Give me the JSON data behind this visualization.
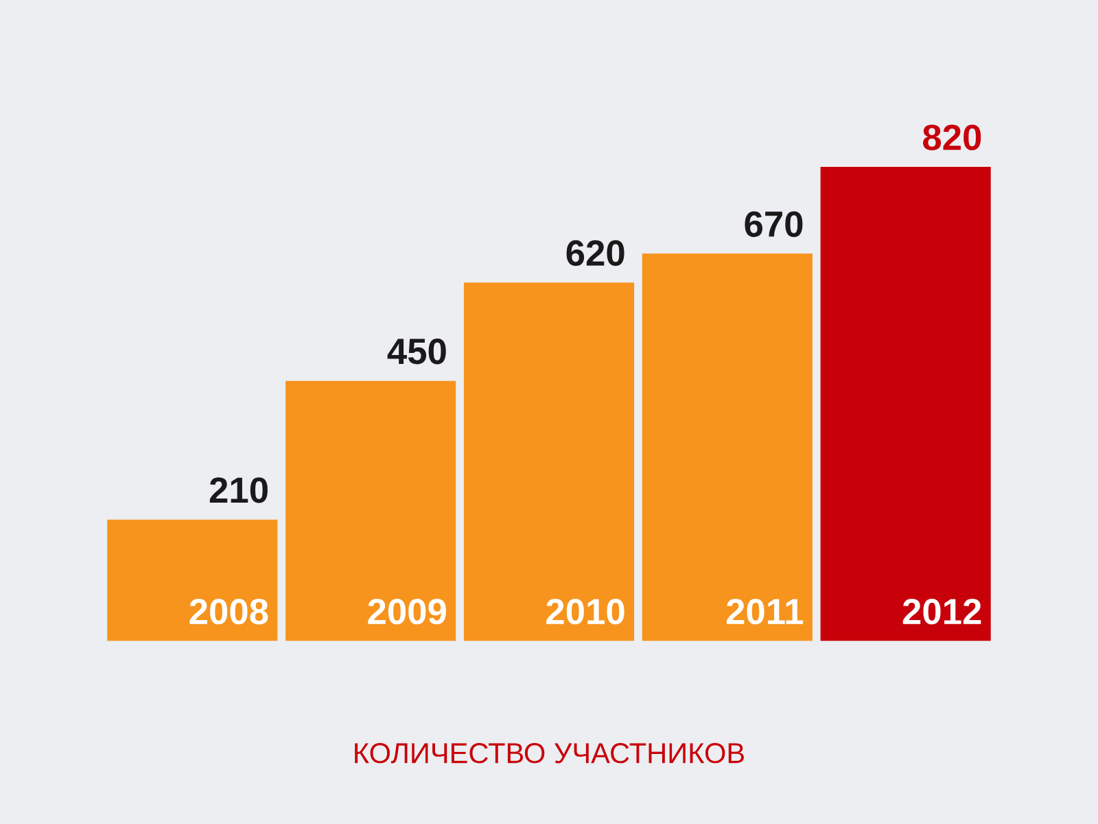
{
  "chart_data": {
    "type": "bar",
    "categories": [
      "2008",
      "2009",
      "2010",
      "2011",
      "2012"
    ],
    "series": [
      {
        "color": "#f7941d",
        "values": [
          210,
          450,
          620,
          670,
          null
        ]
      },
      {
        "color": "#c8000a",
        "values": [
          null,
          null,
          null,
          null,
          820
        ]
      }
    ],
    "data_labels": true,
    "annotations": [
      "КОЛИЧЕСТВО УЧАСТНИКОВ"
    ]
  }
}
